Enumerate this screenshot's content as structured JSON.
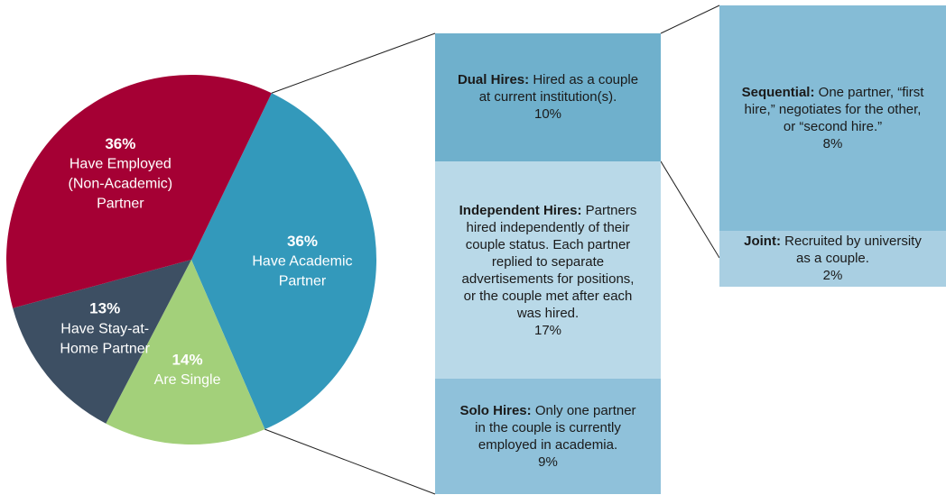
{
  "chart_data": [
    {
      "type": "pie",
      "categories": [
        [
          "Have Academic",
          "Partner"
        ],
        [
          "Are Single"
        ],
        [
          "Have Stay-at-",
          "Home Partner"
        ],
        [
          "Have Employed",
          "(Non-Academic)",
          "Partner"
        ]
      ],
      "values": [
        36,
        14,
        13,
        36
      ],
      "value_labels": [
        "36%",
        "14%",
        "13%",
        "36%"
      ],
      "colors": [
        "#3399bb",
        "#a3d07a",
        "#3d4f63",
        "#a50034"
      ]
    },
    {
      "type": "bar",
      "categories": [
        "Dual Hires:",
        "Independent Hires:",
        "Solo Hires:"
      ],
      "descriptions": [
        "Hired as a couple at current institution(s).",
        "Partners hired independently of their couple status. Each partner replied to separate advertisements for positions, or the couple met after each was hired.",
        "Only one partner in the couple is currently employed in academia."
      ],
      "values": [
        10,
        17,
        9
      ],
      "value_labels": [
        "10%",
        "17%",
        "9%"
      ],
      "colors": [
        "#6fb0cc",
        "#b9d9e8",
        "#8fc1da"
      ]
    },
    {
      "type": "bar",
      "categories": [
        "Sequential:",
        "Joint:"
      ],
      "descriptions": [
        "One partner, “first hire,” negotiates for the other, or “second hire.”",
        "Recruited by university as a couple."
      ],
      "values": [
        8,
        2
      ],
      "value_labels": [
        "8%",
        "2%"
      ],
      "colors": [
        "#85bcd6",
        "#a9cfe2"
      ]
    }
  ]
}
